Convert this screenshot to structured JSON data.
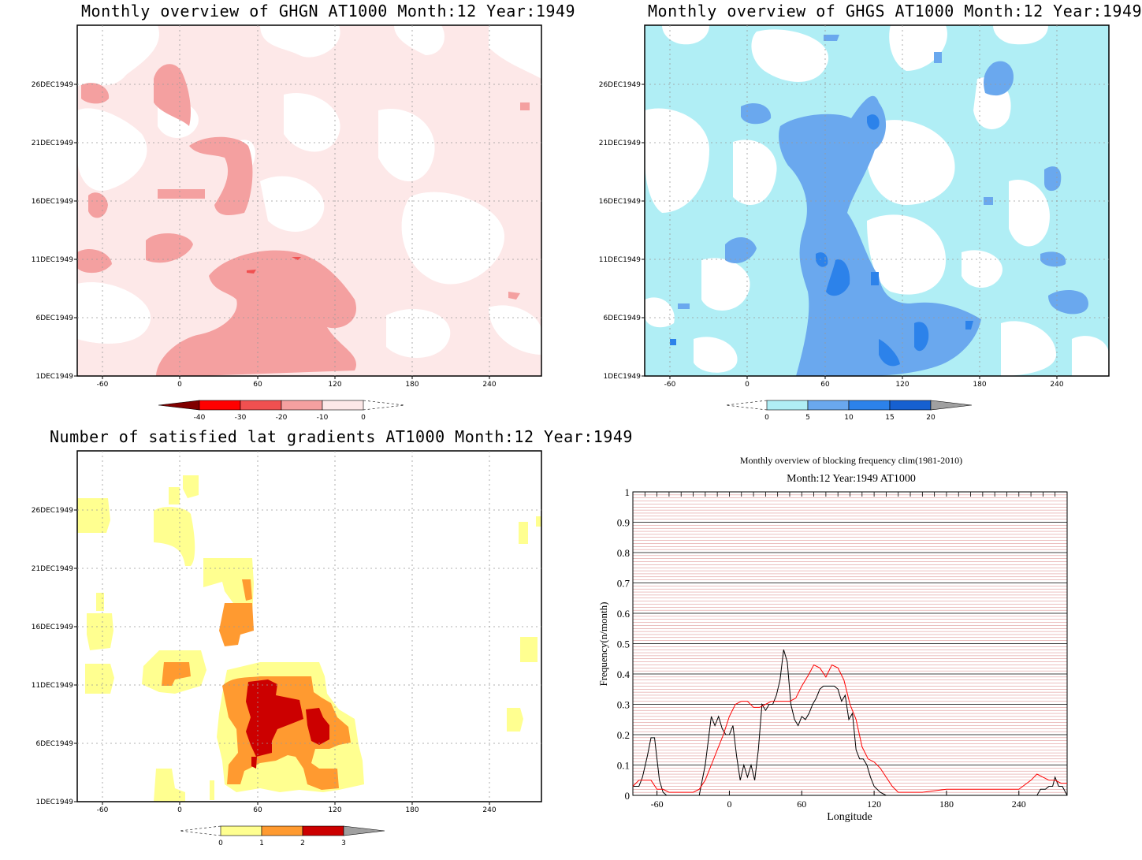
{
  "chart_data": [
    {
      "type": "heatmap",
      "title": "Monthly overview of GHGN AT1000 Month:12 Year:1949",
      "x_ticks": [
        "-60",
        "0",
        "60",
        "120",
        "180",
        "240"
      ],
      "y_ticks": [
        "1DEC1949",
        "6DEC1949",
        "11DEC1949",
        "16DEC1949",
        "21DEC1949",
        "26DEC1949"
      ],
      "colorbar": {
        "labels": [
          "-40",
          "-30",
          "-20",
          "-10",
          "0"
        ],
        "colors": [
          "#800000",
          "#ff0000",
          "#f05050",
          "#f4a0a0",
          "#fde8e8"
        ]
      },
      "background": "#ffffff",
      "base_color": "#fde8e8",
      "mid_color": "#f4a0a0",
      "high_color": "#f05050"
    },
    {
      "type": "heatmap",
      "title": "Monthly overview of GHGS AT1000 Month:12 Year:1949",
      "x_ticks": [
        "-60",
        "0",
        "60",
        "120",
        "180",
        "240"
      ],
      "y_ticks": [
        "1DEC1949",
        "6DEC1949",
        "11DEC1949",
        "16DEC1949",
        "21DEC1949",
        "26DEC1949"
      ],
      "colorbar": {
        "labels": [
          "0",
          "5",
          "10",
          "15",
          "20"
        ],
        "colors": [
          "#b0eef5",
          "#6aa8ee",
          "#2c82ea",
          "#1660d0",
          "#a0a0a0"
        ]
      },
      "background": "#ffffff",
      "base_color": "#b0eef5",
      "mid_color": "#6aa8ee",
      "high_color": "#2c82ea"
    },
    {
      "type": "heatmap",
      "title": "Number of satisfied lat gradients AT1000 Month:12 Year:1949",
      "x_ticks": [
        "-60",
        "0",
        "60",
        "120",
        "180",
        "240"
      ],
      "y_ticks": [
        "1DEC1949",
        "6DEC1949",
        "11DEC1949",
        "16DEC1949",
        "21DEC1949",
        "26DEC1949"
      ],
      "colorbar": {
        "labels": [
          "0",
          "1",
          "2",
          "3"
        ],
        "colors": [
          "#ffff90",
          "#ff9a30",
          "#cc0000",
          "#a0a0a0"
        ]
      },
      "background": "#ffffff",
      "base_color": "#ffff90",
      "mid_color": "#ff9a30",
      "high_color": "#cc0000"
    },
    {
      "type": "line",
      "title": "Monthly overview of blocking frequency clim(1981-2010)",
      "subtitle": "Month:12 Year:1949  AT1000",
      "xlabel": "Longitude",
      "ylabel": "Frequency(n/month)",
      "xlim": [
        -80,
        280
      ],
      "ylim": [
        0,
        1
      ],
      "x_ticks": [
        -60,
        0,
        60,
        120,
        180,
        240
      ],
      "y_ticks": [
        0,
        0.1,
        0.2,
        0.3,
        0.4,
        0.5,
        0.6,
        0.7,
        0.8,
        0.9,
        1
      ],
      "series": [
        {
          "color": "#000000",
          "x": [
            -80,
            -75,
            -72,
            -68,
            -65,
            -62,
            -58,
            -55,
            -52,
            -48,
            -45,
            -40,
            -30,
            -25,
            -20,
            -15,
            -12,
            -9,
            -6,
            -3,
            0,
            3,
            6,
            9,
            12,
            15,
            18,
            21,
            24,
            27,
            30,
            33,
            36,
            39,
            42,
            45,
            48,
            51,
            54,
            57,
            60,
            63,
            66,
            69,
            72,
            75,
            78,
            81,
            84,
            87,
            90,
            93,
            96,
            99,
            102,
            105,
            108,
            111,
            114,
            117,
            120,
            125,
            130,
            135,
            140,
            150,
            160,
            180,
            200,
            220,
            240,
            255,
            258,
            262,
            265,
            268,
            270,
            273,
            276,
            280
          ],
          "y": [
            0.03,
            0.03,
            0.06,
            0.13,
            0.19,
            0.19,
            0.05,
            0.01,
            0,
            0,
            0,
            0,
            0,
            0,
            0.1,
            0.26,
            0.23,
            0.26,
            0.22,
            0.2,
            0.2,
            0.23,
            0.13,
            0.05,
            0.1,
            0.06,
            0.1,
            0.05,
            0.15,
            0.3,
            0.28,
            0.3,
            0.3,
            0.33,
            0.38,
            0.48,
            0.44,
            0.3,
            0.25,
            0.23,
            0.26,
            0.25,
            0.27,
            0.3,
            0.32,
            0.35,
            0.36,
            0.36,
            0.36,
            0.36,
            0.35,
            0.31,
            0.33,
            0.25,
            0.27,
            0.15,
            0.12,
            0.12,
            0.1,
            0.06,
            0.03,
            0.01,
            0,
            0,
            0,
            0,
            0,
            0,
            0,
            0,
            0,
            0,
            0.02,
            0.02,
            0.03,
            0.03,
            0.06,
            0.03,
            0.03,
            0
          ]
        },
        {
          "color": "#ff0000",
          "x": [
            -80,
            -75,
            -70,
            -65,
            -60,
            -55,
            -50,
            -45,
            -40,
            -35,
            -30,
            -25,
            -20,
            -15,
            -10,
            -5,
            0,
            5,
            10,
            15,
            20,
            25,
            30,
            35,
            40,
            45,
            50,
            55,
            60,
            63,
            66,
            70,
            75,
            80,
            85,
            90,
            95,
            100,
            105,
            110,
            115,
            120,
            125,
            130,
            135,
            140,
            150,
            160,
            180,
            200,
            220,
            240,
            250,
            255,
            260,
            265,
            270,
            275,
            280
          ],
          "y": [
            0.03,
            0.05,
            0.05,
            0.05,
            0.02,
            0.02,
            0.01,
            0.01,
            0.01,
            0.01,
            0.01,
            0.02,
            0.05,
            0.1,
            0.15,
            0.2,
            0.26,
            0.3,
            0.31,
            0.31,
            0.29,
            0.29,
            0.3,
            0.31,
            0.31,
            0.31,
            0.31,
            0.32,
            0.36,
            0.38,
            0.4,
            0.43,
            0.42,
            0.39,
            0.43,
            0.42,
            0.38,
            0.3,
            0.25,
            0.16,
            0.12,
            0.11,
            0.09,
            0.06,
            0.03,
            0.01,
            0.01,
            0.01,
            0.02,
            0.02,
            0.02,
            0.02,
            0.05,
            0.07,
            0.06,
            0.05,
            0.05,
            0.04,
            0.04
          ]
        }
      ]
    }
  ]
}
